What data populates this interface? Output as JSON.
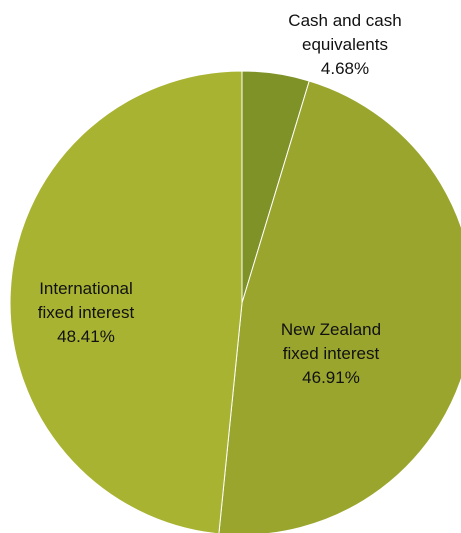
{
  "chart_data": {
    "type": "pie",
    "title": "",
    "legend": "none",
    "start_angle_deg": 0,
    "direction": "clockwise",
    "slices": [
      {
        "label_lines": [
          "Cash and cash",
          "equivalents",
          "4.68%"
        ],
        "value": 4.68,
        "color": "#7e9228"
      },
      {
        "label_lines": [
          "New Zealand",
          "fixed interest",
          "46.91%"
        ],
        "value": 46.91,
        "color": "#9aa52e"
      },
      {
        "label_lines": [
          "International",
          "fixed interest",
          "48.41%"
        ],
        "value": 48.41,
        "color": "#a8b431"
      }
    ]
  }
}
